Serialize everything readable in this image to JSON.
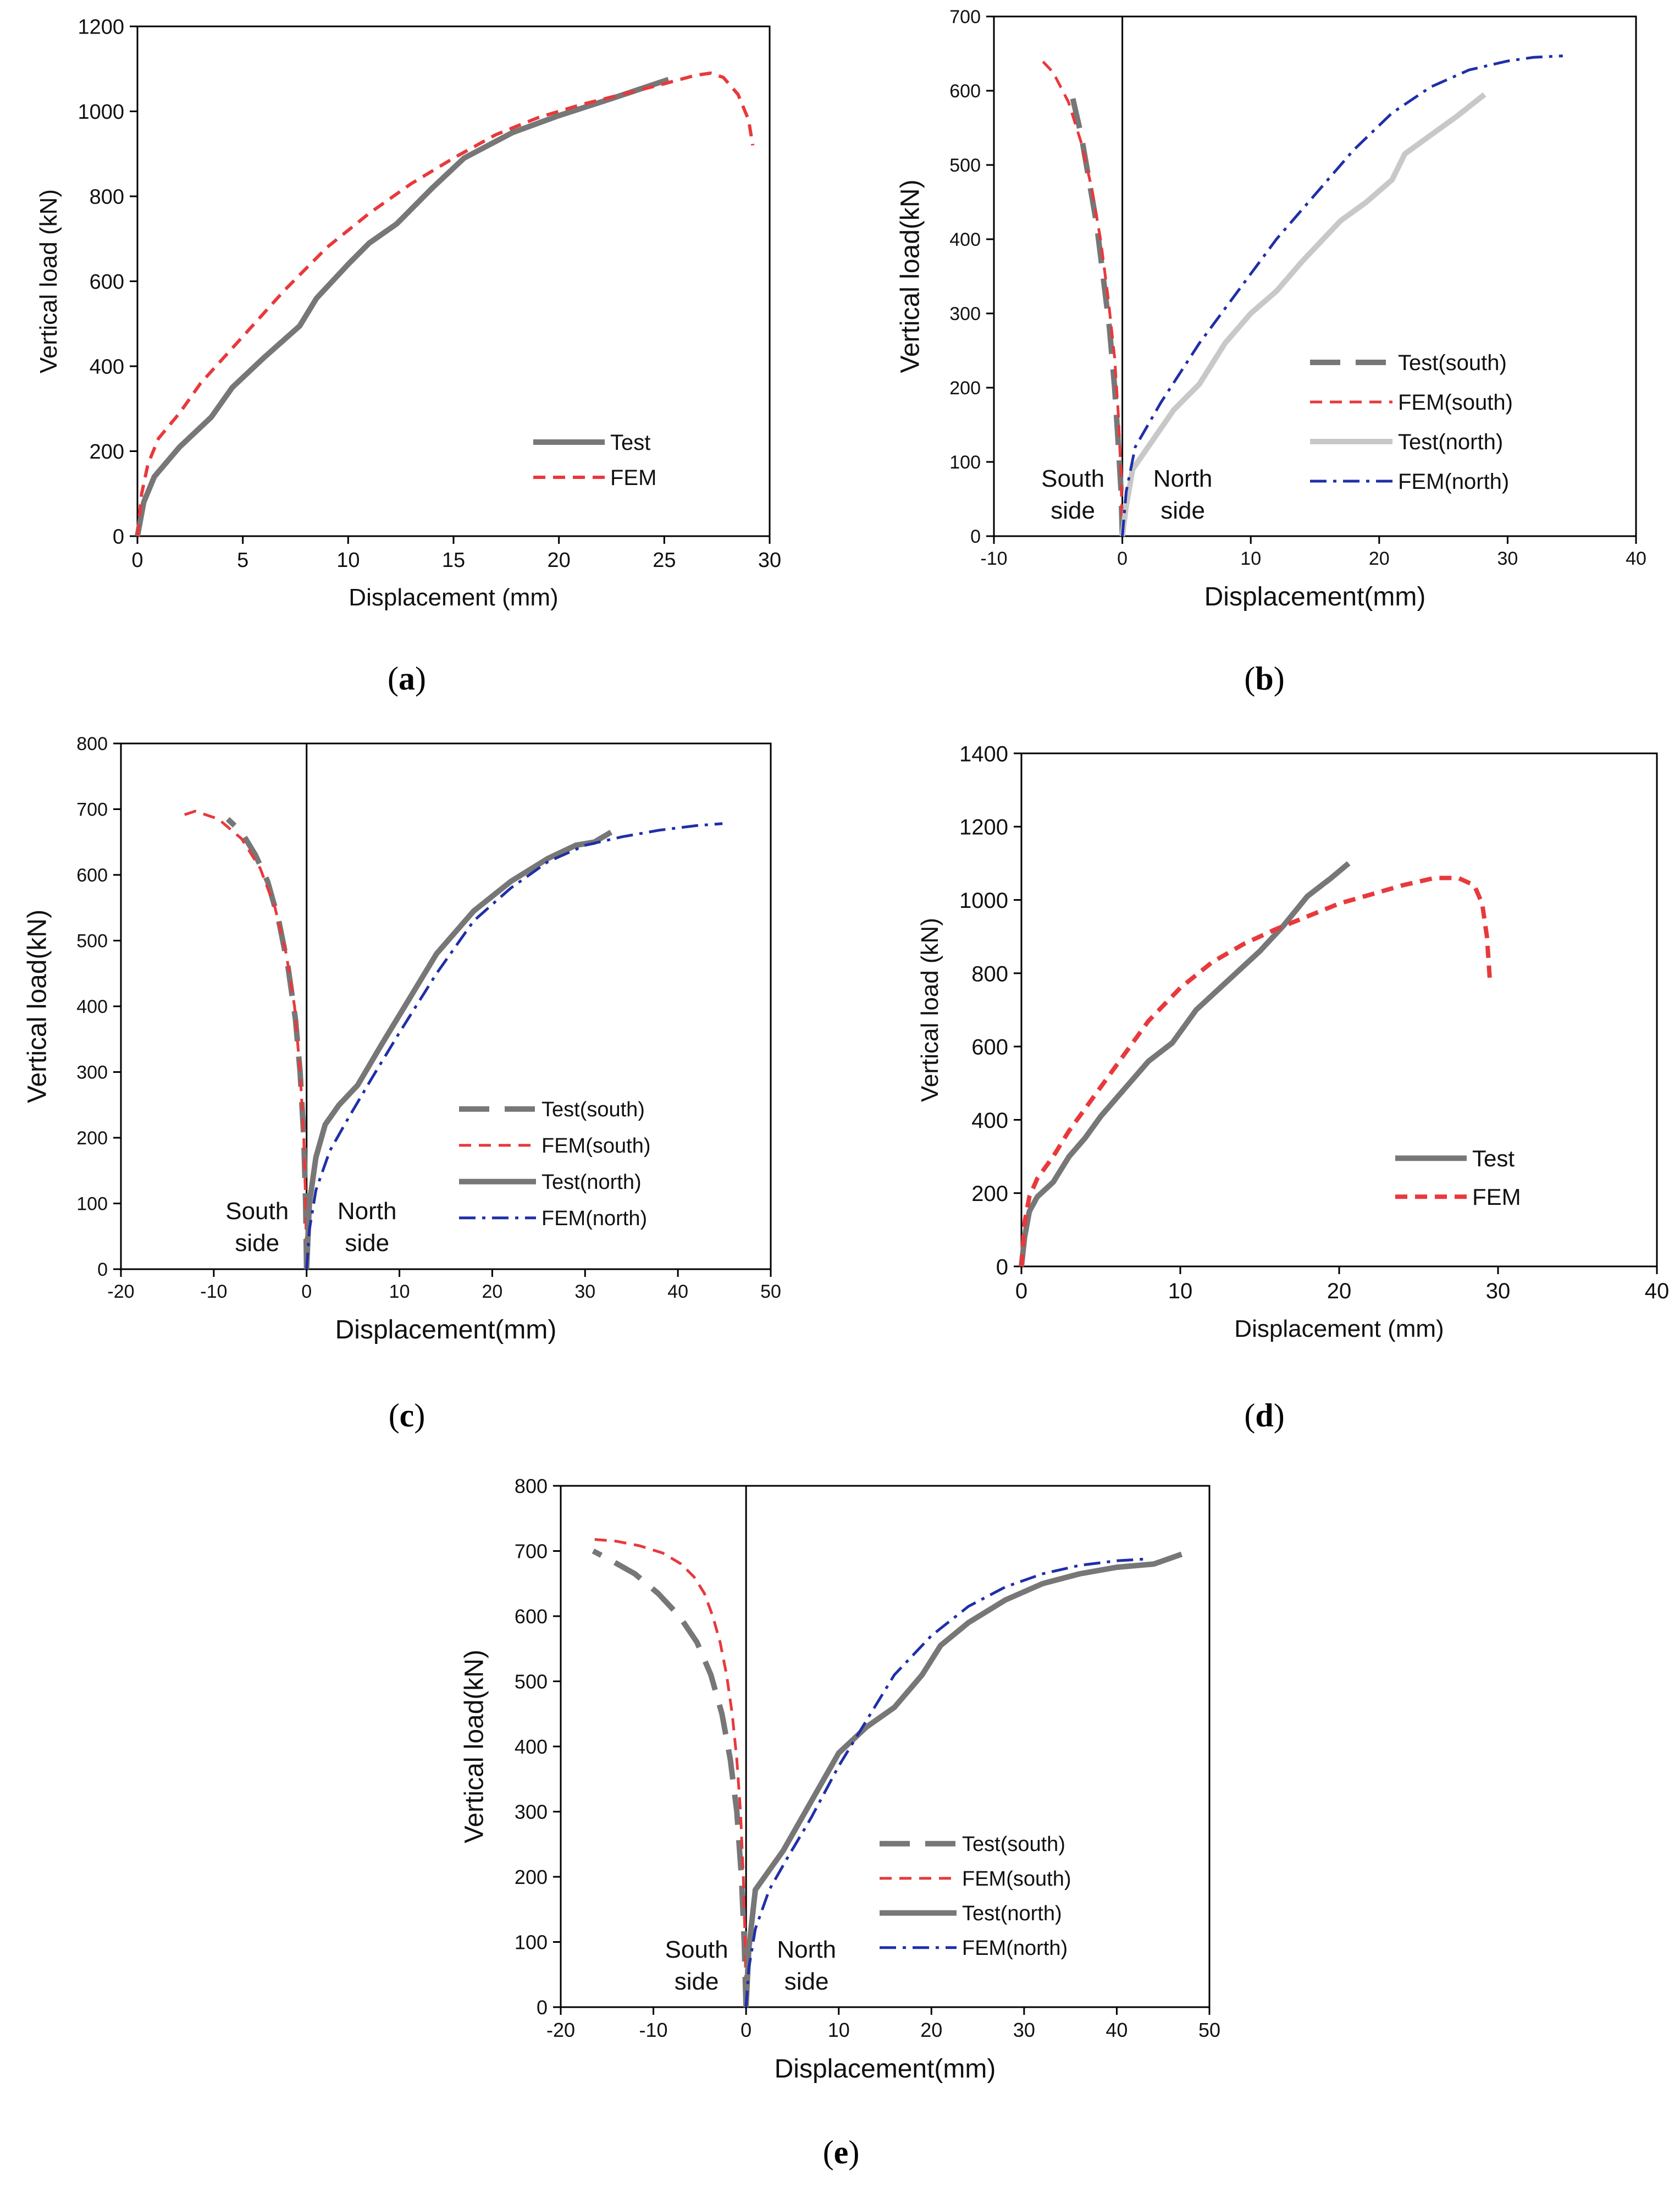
{
  "chart_data": [
    {
      "id": "a",
      "caption": "a",
      "type": "line",
      "xlabel": "Displacement (mm)",
      "ylabel": "Vertical load (kN)",
      "xlim": [
        0,
        30
      ],
      "ylim": [
        0,
        1200
      ],
      "xticks": [
        0,
        5,
        10,
        15,
        20,
        25,
        30
      ],
      "yticks": [
        0,
        200,
        400,
        600,
        800,
        1000,
        1200
      ],
      "legend_position": "bottom-right",
      "series": [
        {
          "name": "Test",
          "color": "#777777",
          "style": "solid",
          "width": 10,
          "x": [
            0,
            0.3,
            0.8,
            2,
            3.5,
            4.5,
            6,
            7.7,
            8.5,
            10,
            11,
            12.3,
            14,
            15.5,
            17.8,
            20,
            22.5,
            25.2
          ],
          "y": [
            0,
            80,
            140,
            210,
            280,
            350,
            420,
            495,
            560,
            640,
            690,
            735,
            820,
            890,
            950,
            990,
            1030,
            1075
          ]
        },
        {
          "name": "FEM",
          "color": "#e8393c",
          "style": "dash",
          "width": 6,
          "x": [
            0,
            0.2,
            0.5,
            1,
            2,
            3,
            5,
            7,
            9,
            11,
            13,
            15,
            17,
            19,
            21,
            23,
            25,
            26.5,
            27.2,
            27.8,
            28.5,
            29,
            29.2
          ],
          "y": [
            0,
            100,
            170,
            230,
            290,
            360,
            470,
            580,
            680,
            760,
            830,
            890,
            945,
            985,
            1015,
            1040,
            1065,
            1085,
            1090,
            1080,
            1040,
            980,
            920
          ]
        }
      ]
    },
    {
      "id": "b",
      "caption": "b",
      "type": "line",
      "xlabel": "Displacement(mm)",
      "ylabel": "Vertical load(kN)",
      "xlim": [
        -10,
        40
      ],
      "ylim": [
        0,
        700
      ],
      "xticks": [
        -10,
        0,
        10,
        20,
        30,
        40
      ],
      "yticks": [
        0,
        100,
        200,
        300,
        400,
        500,
        600,
        700
      ],
      "legend_position": "right",
      "annotations": {
        "south": [
          "South",
          "side"
        ],
        "north": [
          "North",
          "side"
        ]
      },
      "series": [
        {
          "name": "Test(south)",
          "color": "#777777",
          "style": "longdash",
          "width": 10,
          "x": [
            0,
            -0.1,
            -0.3,
            -0.6,
            -1,
            -1.5,
            -2,
            -2.6,
            -3.2,
            -4
          ],
          "y": [
            0,
            60,
            120,
            200,
            280,
            350,
            420,
            480,
            540,
            600
          ]
        },
        {
          "name": "FEM(south)",
          "color": "#e8393c",
          "style": "dash",
          "width": 5,
          "x": [
            0,
            -0.1,
            -0.3,
            -0.6,
            -1.1,
            -1.7,
            -2.4,
            -3.2,
            -4.2,
            -5.4,
            -6.5
          ],
          "y": [
            0,
            80,
            160,
            240,
            320,
            400,
            470,
            530,
            585,
            625,
            645
          ]
        },
        {
          "name": "Test(north)",
          "color": "#c8c8c8",
          "style": "solid",
          "width": 10,
          "x": [
            0,
            0.3,
            0.8,
            2,
            4,
            6,
            8,
            10,
            12,
            14,
            17,
            19,
            21,
            22,
            24,
            26,
            28.2
          ],
          "y": [
            0,
            40,
            90,
            120,
            170,
            205,
            260,
            300,
            330,
            370,
            425,
            450,
            480,
            515,
            540,
            565,
            595
          ]
        },
        {
          "name": "FEM(north)",
          "color": "#1f2fa8",
          "style": "dashdot",
          "width": 5,
          "x": [
            0,
            0.3,
            1,
            3,
            6,
            9,
            12,
            15,
            18,
            21,
            24,
            27,
            30,
            32,
            34.3
          ],
          "y": [
            0,
            60,
            120,
            180,
            260,
            330,
            400,
            460,
            520,
            570,
            605,
            628,
            640,
            645,
            647
          ]
        }
      ]
    },
    {
      "id": "c",
      "caption": "c",
      "type": "line",
      "xlabel": "Displacement(mm)",
      "ylabel": "Vertical load(kN)",
      "xlim": [
        -20,
        50
      ],
      "ylim": [
        0,
        800
      ],
      "xticks": [
        -20,
        -10,
        0,
        10,
        20,
        30,
        40,
        50
      ],
      "yticks": [
        0,
        100,
        200,
        300,
        400,
        500,
        600,
        700,
        800
      ],
      "legend_position": "right",
      "annotations": {
        "south": [
          "South",
          "side"
        ],
        "north": [
          "North",
          "side"
        ]
      },
      "series": [
        {
          "name": "Test(south)",
          "color": "#777777",
          "style": "longdash",
          "width": 10,
          "x": [
            0,
            -0.1,
            -0.3,
            -0.7,
            -1.2,
            -2,
            -3,
            -4.2,
            -5.5,
            -7,
            -8.5
          ],
          "y": [
            0,
            100,
            200,
            300,
            380,
            460,
            530,
            590,
            630,
            665,
            685
          ]
        },
        {
          "name": "FEM(south)",
          "color": "#e8393c",
          "style": "dash",
          "width": 5,
          "x": [
            0,
            -0.1,
            -0.3,
            -0.7,
            -1.3,
            -2.2,
            -3.4,
            -5,
            -7,
            -9.5,
            -12,
            -13.5
          ],
          "y": [
            0,
            100,
            200,
            300,
            400,
            480,
            550,
            610,
            655,
            685,
            697,
            690
          ]
        },
        {
          "name": "Test(north)",
          "color": "#777777",
          "style": "solid",
          "width": 10,
          "x": [
            0,
            0.3,
            1,
            2,
            3.5,
            5.5,
            8,
            11,
            14,
            18,
            22,
            26,
            29,
            31,
            32.8
          ],
          "y": [
            0,
            100,
            170,
            220,
            250,
            280,
            340,
            410,
            480,
            545,
            590,
            625,
            645,
            650,
            665
          ]
        },
        {
          "name": "FEM(north)",
          "color": "#1f2fa8",
          "style": "dashdot",
          "width": 5,
          "x": [
            0,
            0.3,
            1,
            2.5,
            4.5,
            7,
            10,
            14,
            18,
            22,
            26,
            30,
            34,
            38,
            42,
            44.8
          ],
          "y": [
            0,
            60,
            120,
            180,
            230,
            290,
            360,
            450,
            530,
            580,
            620,
            645,
            658,
            668,
            675,
            678
          ]
        }
      ]
    },
    {
      "id": "d",
      "caption": "d",
      "type": "line",
      "xlabel": "Displacement (mm)",
      "ylabel": "Vertical load (kN)",
      "xlim": [
        0,
        40
      ],
      "ylim": [
        0,
        1400
      ],
      "xticks": [
        0,
        10,
        20,
        30,
        40
      ],
      "yticks": [
        0,
        200,
        400,
        600,
        800,
        1000,
        1200,
        1400
      ],
      "legend_position": "bottom-right",
      "series": [
        {
          "name": "Test",
          "color": "#777777",
          "style": "solid",
          "width": 10,
          "x": [
            0,
            0.2,
            0.5,
            1,
            2,
            3,
            4,
            5,
            6,
            7,
            8,
            9.5,
            11,
            13,
            15,
            16.5,
            18,
            19.5,
            20.6
          ],
          "y": [
            0,
            80,
            150,
            190,
            230,
            300,
            350,
            410,
            460,
            510,
            560,
            610,
            700,
            780,
            860,
            930,
            1010,
            1060,
            1100
          ]
        },
        {
          "name": "FEM",
          "color": "#e8393c",
          "style": "dash",
          "width": 8,
          "x": [
            0,
            0.2,
            0.5,
            1,
            2,
            3,
            4,
            5,
            6,
            7,
            8,
            10,
            12,
            14,
            16,
            18,
            20,
            22,
            24,
            26,
            27.5,
            28.5,
            29,
            29.3,
            29.5
          ],
          "y": [
            0,
            120,
            190,
            240,
            300,
            370,
            430,
            490,
            550,
            610,
            670,
            760,
            830,
            880,
            920,
            955,
            990,
            1015,
            1040,
            1060,
            1060,
            1040,
            990,
            900,
            770
          ]
        }
      ]
    },
    {
      "id": "e",
      "caption": "e",
      "type": "line",
      "xlabel": "Displacement(mm)",
      "ylabel": "Vertical load(kN)",
      "xlim": [
        -20,
        50
      ],
      "ylim": [
        0,
        800
      ],
      "xticks": [
        -20,
        -10,
        0,
        10,
        20,
        30,
        40,
        50
      ],
      "yticks": [
        0,
        100,
        200,
        300,
        400,
        500,
        600,
        700,
        800
      ],
      "legend_position": "bottom-right",
      "annotations": {
        "south": [
          "South",
          "side"
        ],
        "north": [
          "North",
          "side"
        ]
      },
      "series": [
        {
          "name": "Test(south)",
          "color": "#777777",
          "style": "longdash",
          "width": 10,
          "x": [
            0,
            -0.2,
            -0.5,
            -1,
            -1.7,
            -2.6,
            -3.8,
            -5.3,
            -7.2,
            -9.5,
            -12,
            -14.5,
            -16.5
          ],
          "y": [
            0,
            100,
            200,
            300,
            380,
            450,
            510,
            560,
            600,
            635,
            665,
            685,
            700
          ]
        },
        {
          "name": "FEM(south)",
          "color": "#e8393c",
          "style": "dash",
          "width": 5,
          "x": [
            0,
            -0.1,
            -0.3,
            -0.6,
            -1,
            -1.5,
            -2.1,
            -2.8,
            -3.6,
            -4.5,
            -5.6,
            -7,
            -9,
            -11.5,
            -14,
            -16.5
          ],
          "y": [
            0,
            100,
            200,
            300,
            380,
            450,
            510,
            560,
            600,
            635,
            660,
            680,
            697,
            708,
            715,
            718
          ]
        },
        {
          "name": "Test(north)",
          "color": "#777777",
          "style": "solid",
          "width": 10,
          "x": [
            0,
            0.3,
            1,
            2,
            4,
            6,
            8,
            10,
            13,
            16,
            19,
            21,
            24,
            28,
            32,
            36,
            40,
            44,
            47
          ],
          "y": [
            0,
            90,
            180,
            200,
            240,
            290,
            340,
            390,
            430,
            460,
            510,
            555,
            590,
            625,
            650,
            665,
            675,
            680,
            695
          ]
        },
        {
          "name": "FEM(north)",
          "color": "#1f2fa8",
          "style": "dashdot",
          "width": 5,
          "x": [
            0,
            0.3,
            1,
            2.5,
            4.5,
            7,
            10,
            13,
            16,
            20,
            24,
            28,
            32,
            36,
            40,
            43.5
          ],
          "y": [
            0,
            60,
            120,
            180,
            230,
            290,
            370,
            440,
            510,
            570,
            615,
            645,
            665,
            678,
            685,
            688
          ]
        }
      ]
    }
  ]
}
